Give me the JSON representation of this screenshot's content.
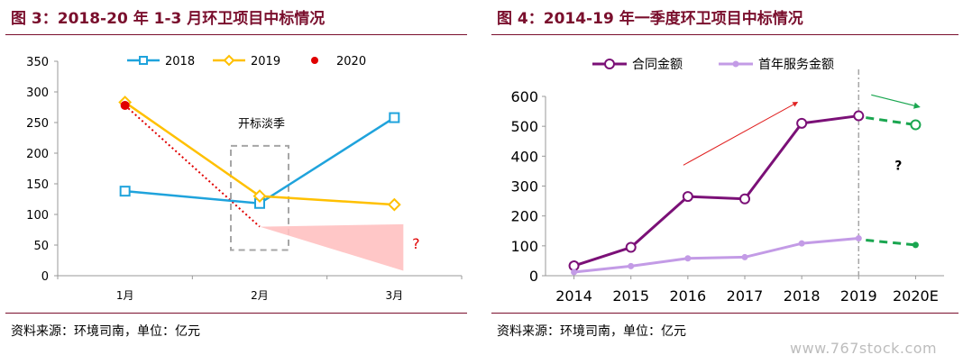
{
  "left": {
    "title": "图 3：2018-20 年 1-3 月环卫项目中标情况",
    "source": "资料来源：环境司南，单位：亿元",
    "annotation": "开标淡季",
    "question": "?"
  },
  "right": {
    "title": "图 4：2014-19 年一季度环卫项目中标情况",
    "source": "资料来源：环境司南，单位：亿元",
    "question": "?"
  },
  "watermark": "www.767stock.com",
  "colors": {
    "title": "#7a0f2d",
    "s2018": "#1fa3dc",
    "s2019": "#ffc000",
    "s2020": "#e00000",
    "contract": "#7b1077",
    "service": "#c39be6",
    "forecast": "#1aa650",
    "uptrend_arrow": "#e02020"
  },
  "chart_data": [
    {
      "type": "line",
      "categories": [
        "1月",
        "2月",
        "3月"
      ],
      "ylim": [
        0,
        350
      ],
      "yticks": [
        0,
        50,
        100,
        150,
        200,
        250,
        300,
        350
      ],
      "legend_position": "top",
      "series": [
        {
          "name": "2018",
          "values": [
            138,
            118,
            258
          ]
        },
        {
          "name": "2019",
          "values": [
            283,
            130,
            116
          ]
        },
        {
          "name": "2020",
          "values": [
            278,
            null,
            null
          ]
        }
      ]
    },
    {
      "type": "line",
      "categories": [
        "2014",
        "2015",
        "2016",
        "2017",
        "2018",
        "2019",
        "2020E"
      ],
      "ylim": [
        0,
        600
      ],
      "yticks": [
        0,
        100,
        200,
        300,
        400,
        500,
        600
      ],
      "legend_position": "top",
      "series": [
        {
          "name": "合同金额",
          "values": [
            33,
            95,
            265,
            257,
            510,
            535,
            505
          ]
        },
        {
          "name": "首年服务金额",
          "values": [
            12,
            32,
            58,
            62,
            108,
            125,
            103
          ]
        }
      ]
    }
  ]
}
